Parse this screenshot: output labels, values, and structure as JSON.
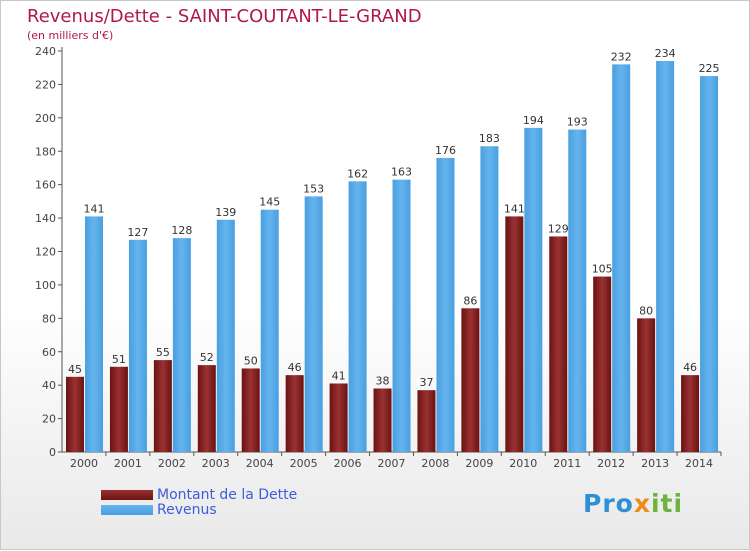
{
  "title": "Revenus/Dette - SAINT-COUTANT-LE-GRAND",
  "subtitle": "(en milliers d'€)",
  "logo": {
    "text": "Proxiti",
    "part1": "Pro",
    "part2": "x",
    "part3": "iti"
  },
  "colors": {
    "debt": "#6b1212",
    "debt_light": "#9a3232",
    "revenue": "#4a9fe0",
    "revenue_light": "#64b4ee",
    "title": "#b0174e",
    "legend_text": "#3b5ddb"
  },
  "chart_data": {
    "type": "bar",
    "title": "Revenus/Dette - SAINT-COUTANT-LE-GRAND",
    "subtitle": "(en milliers d'€)",
    "categories": [
      "2000",
      "2001",
      "2002",
      "2003",
      "2004",
      "2005",
      "2006",
      "2007",
      "2008",
      "2009",
      "2010",
      "2011",
      "2012",
      "2013",
      "2014"
    ],
    "series": [
      {
        "name": "Montant de la Dette",
        "values": [
          45,
          51,
          55,
          52,
          50,
          46,
          41,
          38,
          37,
          86,
          141,
          129,
          105,
          80,
          46
        ]
      },
      {
        "name": "Revenus",
        "values": [
          141,
          127,
          128,
          139,
          145,
          153,
          162,
          163,
          176,
          183,
          194,
          193,
          232,
          234,
          225
        ]
      }
    ],
    "ylim": [
      0,
      240
    ],
    "yticks": [
      0,
      20,
      40,
      60,
      80,
      100,
      120,
      140,
      160,
      180,
      200,
      220,
      240
    ],
    "grid": false,
    "legend_position": "bottom-left"
  }
}
